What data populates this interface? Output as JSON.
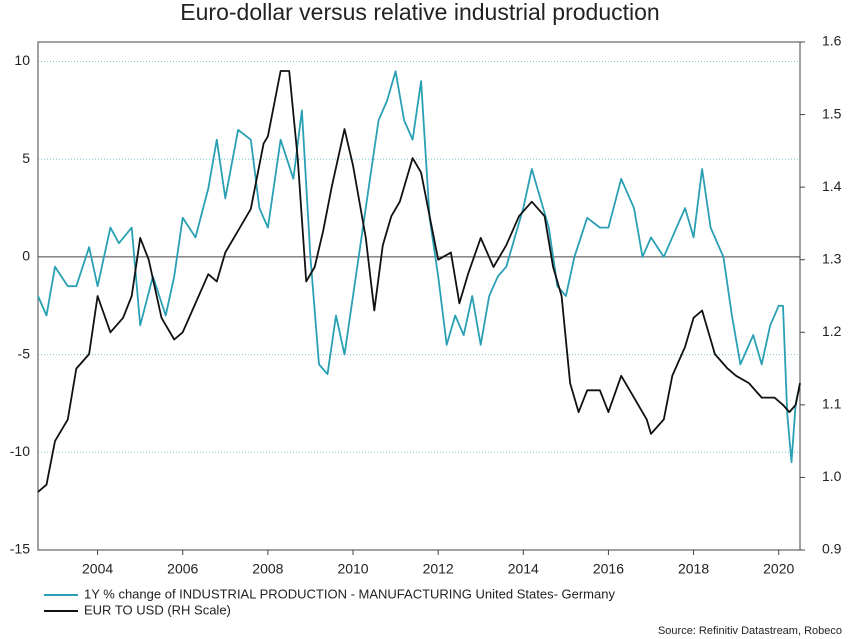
{
  "chart_data": {
    "type": "line",
    "title": "Euro-dollar versus relative industrial production",
    "source": "Source: Refinitiv Datastream, Robeco",
    "xlim": [
      2002.6,
      2020.5
    ],
    "xticks": [
      2004,
      2006,
      2008,
      2010,
      2012,
      2014,
      2016,
      2018,
      2020
    ],
    "ylim": [
      -15,
      11
    ],
    "yticks": [
      -15,
      -10,
      -5,
      0,
      5,
      10
    ],
    "y2lim": [
      0.9,
      1.6
    ],
    "y2ticks": [
      {
        "value": 0.9,
        "label": "0.9"
      },
      {
        "value": 1.0,
        "label": "1.0"
      },
      {
        "value": 1.1,
        "label": "1.1"
      },
      {
        "value": 1.2,
        "label": "1.2"
      },
      {
        "value": 1.3,
        "label": "1.3"
      },
      {
        "value": 1.4,
        "label": "1.4"
      },
      {
        "value": 1.5,
        "label": "1.5"
      },
      {
        "value": 1.6,
        "label": "1.6"
      }
    ],
    "grid": true,
    "legend": "bottom-left",
    "series": [
      {
        "name": "1Y % change of INDUSTRIAL PRODUCTION - MANUFACTURING United States- Germany",
        "color": "#2aa0b4",
        "x": [
          2002.6,
          2002.8,
          2003,
          2003.3,
          2003.5,
          2003.8,
          2004,
          2004.3,
          2004.5,
          2004.8,
          2005,
          2005.3,
          2005.6,
          2005.8,
          2006,
          2006.3,
          2006.6,
          2006.8,
          2007,
          2007.3,
          2007.6,
          2007.8,
          2008,
          2008.3,
          2008.6,
          2008.8,
          2009,
          2009.2,
          2009.4,
          2009.6,
          2009.8,
          2010,
          2010.2,
          2010.4,
          2010.6,
          2010.8,
          2011,
          2011.2,
          2011.4,
          2011.6,
          2011.8,
          2012,
          2012.2,
          2012.4,
          2012.6,
          2012.8,
          2013,
          2013.2,
          2013.4,
          2013.6,
          2013.8,
          2014,
          2014.2,
          2014.4,
          2014.6,
          2014.8,
          2015,
          2015.2,
          2015.5,
          2015.8,
          2016,
          2016.3,
          2016.6,
          2016.8,
          2017,
          2017.3,
          2017.6,
          2017.8,
          2018,
          2018.2,
          2018.4,
          2018.7,
          2018.9,
          2019.1,
          2019.4,
          2019.6,
          2019.8,
          2020,
          2020.1,
          2020.2,
          2020.3,
          2020.4,
          2020.5
        ],
        "values": [
          -2,
          -3,
          -0.5,
          -1.5,
          -1.5,
          0.5,
          -1.5,
          1.5,
          0.7,
          1.5,
          -3.5,
          -1,
          -3,
          -1,
          2,
          1,
          3.5,
          6,
          3,
          6.5,
          6,
          2.5,
          1.5,
          6,
          4,
          7.5,
          0,
          -5.5,
          -6,
          -3,
          -5,
          -2,
          1,
          4,
          7,
          8,
          9.5,
          7,
          6,
          9,
          2,
          -1,
          -4.5,
          -3,
          -4,
          -2,
          -4.5,
          -2,
          -1,
          -0.5,
          1,
          2.5,
          4.5,
          3,
          1.5,
          -1.5,
          -2,
          0,
          2,
          1.5,
          1.5,
          4,
          2.5,
          0,
          1,
          0,
          1.5,
          2.5,
          1,
          4.5,
          1.5,
          0,
          -3,
          -5.5,
          -4,
          -5.5,
          -3.5,
          -2.5,
          -2.5,
          -8,
          -10.5,
          -7.5,
          -6.5
        ]
      },
      {
        "name": "EUR TO USD (RH Scale)",
        "color": "#111111",
        "axis": "y2",
        "x": [
          2002.6,
          2002.8,
          2003,
          2003.3,
          2003.5,
          2003.8,
          2004,
          2004.3,
          2004.6,
          2004.8,
          2005,
          2005.2,
          2005.5,
          2005.8,
          2006,
          2006.3,
          2006.6,
          2006.8,
          2007,
          2007.3,
          2007.6,
          2007.9,
          2008,
          2008.3,
          2008.5,
          2008.7,
          2008.9,
          2009.1,
          2009.3,
          2009.5,
          2009.8,
          2010,
          2010.3,
          2010.5,
          2010.7,
          2010.9,
          2011.1,
          2011.4,
          2011.6,
          2011.8,
          2012,
          2012.3,
          2012.5,
          2012.7,
          2013,
          2013.3,
          2013.6,
          2013.9,
          2014.2,
          2014.5,
          2014.7,
          2014.9,
          2015.1,
          2015.3,
          2015.5,
          2015.8,
          2016,
          2016.3,
          2016.6,
          2016.9,
          2017,
          2017.3,
          2017.5,
          2017.8,
          2018,
          2018.2,
          2018.5,
          2018.8,
          2019,
          2019.3,
          2019.6,
          2019.9,
          2020.1,
          2020.25,
          2020.4,
          2020.5
        ],
        "values": [
          0.98,
          0.99,
          1.05,
          1.08,
          1.15,
          1.17,
          1.25,
          1.2,
          1.22,
          1.25,
          1.33,
          1.3,
          1.22,
          1.19,
          1.2,
          1.24,
          1.28,
          1.27,
          1.31,
          1.34,
          1.37,
          1.46,
          1.47,
          1.56,
          1.56,
          1.44,
          1.27,
          1.29,
          1.34,
          1.4,
          1.48,
          1.43,
          1.33,
          1.23,
          1.32,
          1.36,
          1.38,
          1.44,
          1.42,
          1.36,
          1.3,
          1.31,
          1.24,
          1.28,
          1.33,
          1.29,
          1.32,
          1.36,
          1.38,
          1.36,
          1.29,
          1.25,
          1.13,
          1.09,
          1.12,
          1.12,
          1.09,
          1.14,
          1.11,
          1.08,
          1.06,
          1.08,
          1.14,
          1.18,
          1.22,
          1.23,
          1.17,
          1.15,
          1.14,
          1.13,
          1.11,
          1.11,
          1.1,
          1.09,
          1.1,
          1.13
        ]
      }
    ]
  }
}
